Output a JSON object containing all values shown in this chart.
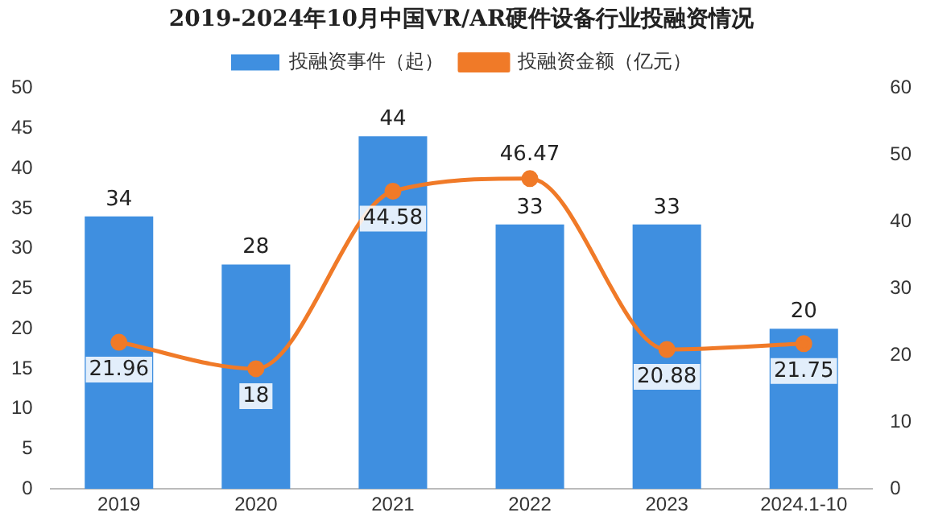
{
  "chart_data": {
    "type": "bar",
    "title": "2019-2024年10月中国VR/AR硬件设备行业投融资情况",
    "categories": [
      "2019",
      "2020",
      "2021",
      "2022",
      "2023",
      "2024.1-10"
    ],
    "series": [
      {
        "name": "投融资事件（起）",
        "color": "#3f8fe0",
        "values": [
          34,
          28,
          44,
          33,
          33,
          20
        ]
      },
      {
        "name": "投融资金额（亿元）",
        "type": "line",
        "axis": "y2",
        "color": "#f07a28",
        "values": [
          21.96,
          18,
          44.58,
          46.47,
          20.88,
          21.75
        ]
      }
    ],
    "ylim": [
      0,
      50
    ],
    "yticks": [
      0,
      5,
      10,
      15,
      20,
      25,
      30,
      35,
      40,
      45,
      50
    ],
    "y2lim": [
      0,
      60
    ],
    "y2ticks": [
      0,
      10,
      20,
      30,
      40,
      50,
      60
    ],
    "grid": false,
    "legend": "top",
    "marker": "circle",
    "line_style": "solid",
    "data_labels": true
  }
}
